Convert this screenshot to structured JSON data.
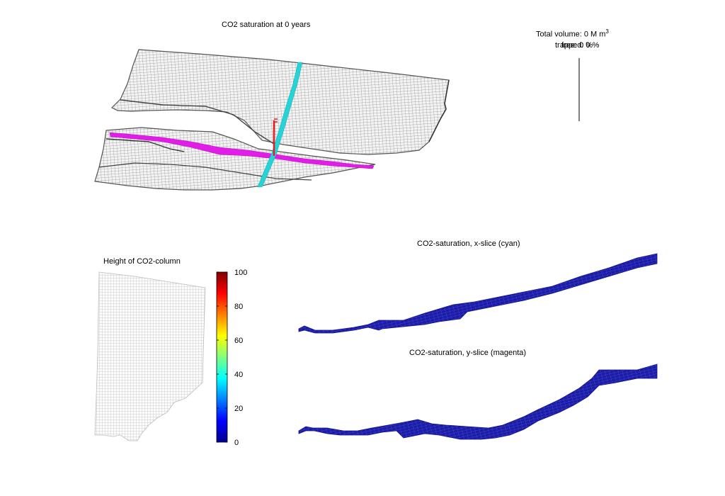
{
  "colors": {
    "mesh_line": "#5a5a5a",
    "mesh_fill": "#f4f4f4",
    "x_slice": "#27d3d6",
    "y_slice": "#e01ee6",
    "well": "#e02020",
    "slice_fill": "#1c1ca8",
    "slice_grid": "#5a66d8"
  },
  "chart_data": [
    {
      "type": "other",
      "title": "CO2 saturation at 0 years",
      "annotation": {
        "total_volume_text": "Total volume: 0 M m",
        "superscript": "3",
        "overlapping_lines": [
          "trapped: 0 %",
          "free: 0 %"
        ]
      }
    },
    {
      "type": "heatmap",
      "title": "Height of CO2-column",
      "colorbar": {
        "min": 0,
        "max": 100,
        "ticks": [
          "0",
          "20",
          "40",
          "60",
          "80",
          "100"
        ],
        "colormap": "jet"
      }
    },
    {
      "type": "heatmap",
      "title": "CO2-saturation, x-slice (cyan)"
    },
    {
      "type": "heatmap",
      "title": "CO2-saturation, y-slice (magenta)"
    }
  ]
}
